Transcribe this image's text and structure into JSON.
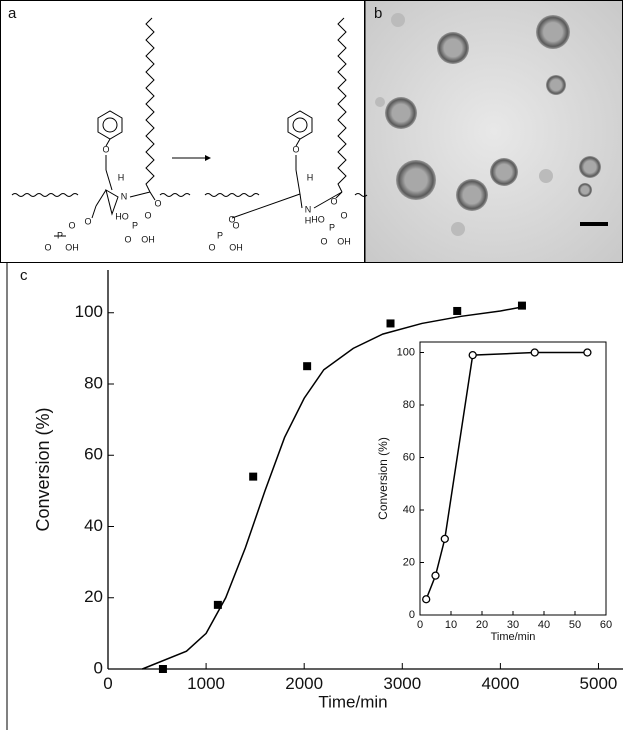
{
  "panel_a": {
    "label": "a",
    "left_atoms": [
      "H",
      "N",
      "O",
      "O",
      "O",
      "P",
      "O",
      "O",
      "OH",
      "HO",
      "P",
      "O",
      "O",
      "OH"
    ],
    "right_atoms": [
      "H",
      "N",
      "H",
      "O",
      "O",
      "O",
      "P",
      "O",
      "O",
      "OH",
      "HO",
      "P",
      "O",
      "O",
      "OH"
    ]
  },
  "panel_b": {
    "label": "b"
  },
  "chart_data": [
    {
      "type": "scatter",
      "label": "c",
      "xlabel": "Time/min",
      "ylabel": "Conversion (%)",
      "x": [
        560,
        1120,
        1480,
        2030,
        2880,
        3560,
        4220
      ],
      "values": [
        0,
        18,
        54,
        85,
        97,
        100.5,
        102
      ],
      "color": "#000000",
      "fit": {
        "x": [
          350,
          800,
          1000,
          1200,
          1400,
          1600,
          1800,
          2000,
          2200,
          2500,
          2800,
          3200,
          3600,
          4000,
          4200
        ],
        "values": [
          0,
          5,
          10,
          20,
          34,
          50,
          65,
          76,
          84,
          90,
          94,
          97,
          99,
          100.5,
          101.5
        ]
      },
      "xlim": [
        0,
        5250
      ],
      "ylim": [
        0,
        112
      ],
      "xticks": [
        0,
        1000,
        2000,
        3000,
        4000,
        5000
      ],
      "yticks": [
        0,
        20,
        40,
        60,
        80,
        100
      ]
    },
    {
      "type": "line",
      "xlabel": "Time/min",
      "ylabel": "Conversion (%)",
      "x": [
        2,
        5,
        8,
        17,
        37,
        54
      ],
      "values": [
        6,
        15,
        29,
        99,
        100,
        100
      ],
      "color": "#000000",
      "xlim": [
        0,
        60
      ],
      "ylim": [
        0,
        104
      ],
      "xticks": [
        0,
        10,
        20,
        30,
        40,
        50,
        60
      ],
      "yticks": [
        0,
        20,
        40,
        60,
        80,
        100
      ]
    }
  ]
}
